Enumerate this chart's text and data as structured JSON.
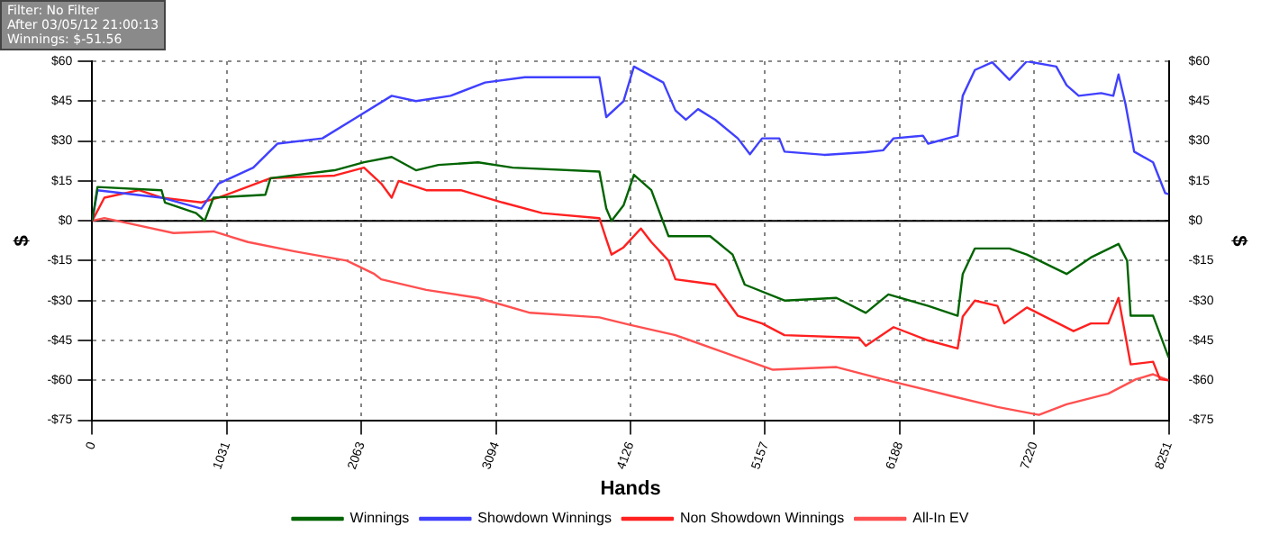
{
  "chart_data": {
    "type": "line",
    "xlabel": "Hands",
    "ylabel": "$",
    "y2label": "$",
    "annotations": [
      "Filter: No Filter",
      "After 03/05/12 21:00:13",
      "Winnings: $-51.56"
    ],
    "xlim": [
      0,
      8251
    ],
    "xticks": [
      0,
      1031,
      2063,
      3094,
      4126,
      5157,
      6188,
      7220,
      8251
    ],
    "ylim": [
      -75,
      60
    ],
    "yticks": [
      {
        "value": -75,
        "label": "-$75"
      },
      {
        "value": -60,
        "label": "-$60"
      },
      {
        "value": -45,
        "label": "-$45"
      },
      {
        "value": -30,
        "label": "-$30"
      },
      {
        "value": -15,
        "label": "-$15"
      },
      {
        "value": 0,
        "label": "$0"
      },
      {
        "value": 15,
        "label": "$15"
      },
      {
        "value": 30,
        "label": "$30"
      },
      {
        "value": 45,
        "label": "$45"
      },
      {
        "value": 60,
        "label": "$60"
      }
    ],
    "y2lim": [
      -75,
      60
    ],
    "y2ticks": [
      {
        "value": -75,
        "label": "-$75"
      },
      {
        "value": -60,
        "label": "-$60"
      },
      {
        "value": -45,
        "label": "-$45"
      },
      {
        "value": -30,
        "label": "-$30"
      },
      {
        "value": -15,
        "label": "-$15"
      },
      {
        "value": 0,
        "label": "$0"
      },
      {
        "value": 15,
        "label": "$15"
      },
      {
        "value": 30,
        "label": "$30"
      },
      {
        "value": 45,
        "label": "$45"
      },
      {
        "value": 60,
        "label": "$60"
      }
    ],
    "grid": true,
    "legend": "bottom",
    "marker": "none",
    "line_style": "solid",
    "ref_lines": [
      {
        "axis": "y",
        "value": 0,
        "color": "#000000"
      }
    ],
    "series": [
      {
        "name": "Winnings",
        "color": "#006400",
        "x": [
          0,
          40,
          531,
          557,
          796,
          862,
          929,
          1327,
          1366,
          1857,
          2083,
          2295,
          2481,
          2653,
          2958,
          3223,
          3887,
          3940,
          3980,
          4072,
          4152,
          4285,
          4417,
          4736,
          4908,
          5001,
          5306,
          5704,
          5929,
          6102,
          6407,
          6633,
          6672,
          6765,
          7030,
          7163,
          7468,
          7654,
          7866,
          7932,
          7959,
          8131,
          8251
        ],
        "values": [
          0,
          12.7,
          11.5,
          6.9,
          2.9,
          0,
          8.7,
          9.8,
          16,
          19,
          22,
          24,
          19,
          21,
          22,
          20,
          18.5,
          4.6,
          0,
          5.8,
          17.3,
          11.5,
          -5.8,
          -5.8,
          -12.7,
          -24,
          -30,
          -29,
          -34.6,
          -27.7,
          -32,
          -35.7,
          -20,
          -10.4,
          -10.4,
          -12.7,
          -20,
          -13.8,
          -8.7,
          -15,
          -35.7,
          -35.7,
          -51.5
        ]
      },
      {
        "name": "Showdown Winnings",
        "color": "#4040ff",
        "x": [
          0,
          40,
          531,
          836,
          968,
          1234,
          1419,
          1764,
          2030,
          2295,
          2481,
          2746,
          3011,
          3316,
          3887,
          3940,
          4072,
          4152,
          4377,
          4470,
          4550,
          4643,
          4775,
          4948,
          5041,
          5134,
          5266,
          5306,
          5611,
          5929,
          6062,
          6142,
          6367,
          6407,
          6633,
          6672,
          6765,
          6898,
          7030,
          7163,
          7389,
          7468,
          7561,
          7733,
          7826,
          7866,
          7919,
          7986,
          8131,
          8224,
          8251
        ],
        "values": [
          0,
          11.5,
          8.7,
          4.6,
          14,
          20,
          29,
          31,
          39,
          47,
          45,
          47,
          52,
          54,
          54,
          39,
          45,
          58,
          52,
          41.5,
          38,
          42,
          38,
          31,
          25,
          31,
          31,
          26,
          24.8,
          25.8,
          26.5,
          31,
          32,
          29,
          32,
          47,
          56.7,
          59.6,
          53,
          60,
          58,
          51,
          47,
          48,
          47,
          55,
          44,
          26,
          22,
          10.4,
          10
        ]
      },
      {
        "name": "Non Showdown Winnings",
        "color": "#ff2020",
        "x": [
          0,
          93,
          358,
          531,
          836,
          968,
          1366,
          1857,
          2083,
          2215,
          2295,
          2348,
          2560,
          2825,
          3144,
          3449,
          3887,
          3940,
          3980,
          4072,
          4205,
          4285,
          4417,
          4470,
          4775,
          4948,
          5134,
          5306,
          5876,
          5929,
          6142,
          6407,
          6633,
          6672,
          6765,
          6938,
          6991,
          7163,
          7521,
          7654,
          7787,
          7866,
          7959,
          8131,
          8184,
          8251
        ],
        "values": [
          0,
          8.7,
          11.5,
          8.7,
          6.9,
          8.7,
          16,
          17,
          20,
          14,
          8.7,
          15,
          11.5,
          11.5,
          6.9,
          2.9,
          1,
          -6.9,
          -12.7,
          -10,
          -2.9,
          -8,
          -15,
          -22,
          -24,
          -35.7,
          -38.6,
          -43,
          -44,
          -47,
          -40,
          -45,
          -48,
          -36,
          -30,
          -32,
          -38.6,
          -32.6,
          -41.5,
          -38.6,
          -38.6,
          -29,
          -54,
          -53,
          -59.6,
          -60
        ]
      },
      {
        "name": "All-In EV",
        "color": "#ff5050",
        "x": [
          0,
          93,
          623,
          929,
          1194,
          1552,
          1950,
          2162,
          2215,
          2560,
          2958,
          3356,
          3887,
          4112,
          4470,
          4815,
          5213,
          5704,
          6062,
          6593,
          6938,
          7256,
          7468,
          7787,
          7999,
          8131,
          8251
        ],
        "values": [
          0,
          1,
          -4.6,
          -4,
          -8,
          -11.5,
          -15,
          -20,
          -22,
          -26,
          -29,
          -34.6,
          -36.3,
          -39,
          -43,
          -49,
          -56,
          -55,
          -59.6,
          -66,
          -70,
          -73,
          -69,
          -65,
          -59.6,
          -57.7,
          -60
        ]
      }
    ]
  }
}
